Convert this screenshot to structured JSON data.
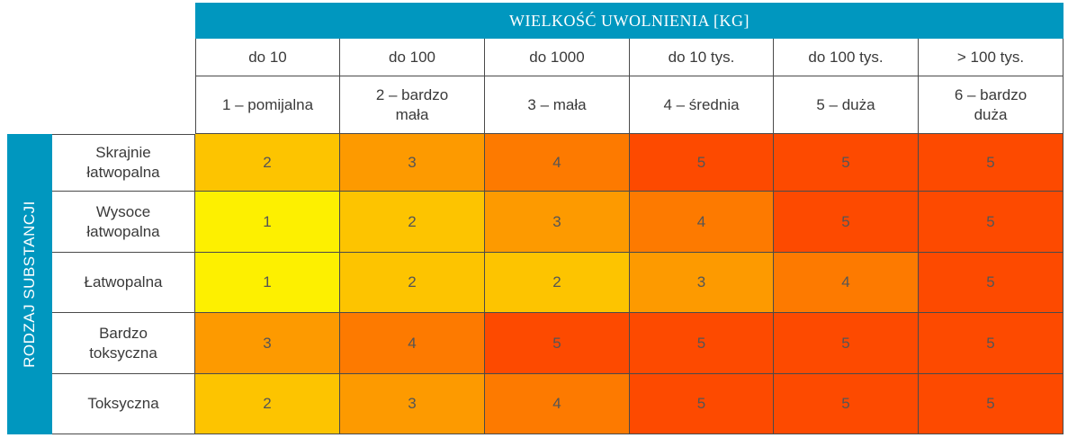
{
  "header": {
    "title": "WIELKOŚĆ UWOLNIENIA [KG]"
  },
  "columns": [
    {
      "range": "do 10",
      "category": "1 – pomijalna"
    },
    {
      "range": "do 100",
      "category": "2 – bardzo mała"
    },
    {
      "range": "do 1000",
      "category": "3 – mała"
    },
    {
      "range": "do 10 tys.",
      "category": "4 – średnia"
    },
    {
      "range": "do 100 tys.",
      "category": "5 – duża"
    },
    {
      "range": "> 100 tys.",
      "category": "6 – bardzo duża"
    }
  ],
  "side_label": "RODZAJ SUBSTANCJI",
  "rows": [
    {
      "label": "Skrajnie łatwopalna",
      "values": [
        "2",
        "3",
        "4",
        "5",
        "5",
        "5"
      ]
    },
    {
      "label": "Wysoce łatwopalna",
      "values": [
        "1",
        "2",
        "3",
        "4",
        "5",
        "5"
      ]
    },
    {
      "label": "Łatwopalna",
      "values": [
        "1",
        "2",
        "2",
        "3",
        "4",
        "5"
      ]
    },
    {
      "label": "Bardzo toksyczna",
      "values": [
        "3",
        "4",
        "5",
        "5",
        "5",
        "5"
      ]
    },
    {
      "label": "Toksyczna",
      "values": [
        "2",
        "3",
        "4",
        "5",
        "5",
        "5"
      ]
    }
  ],
  "level_colors": {
    "1": "#fdf000",
    "2": "#fdc400",
    "3": "#fd9a00",
    "4": "#fd7a00",
    "5": "#fd4a00"
  }
}
